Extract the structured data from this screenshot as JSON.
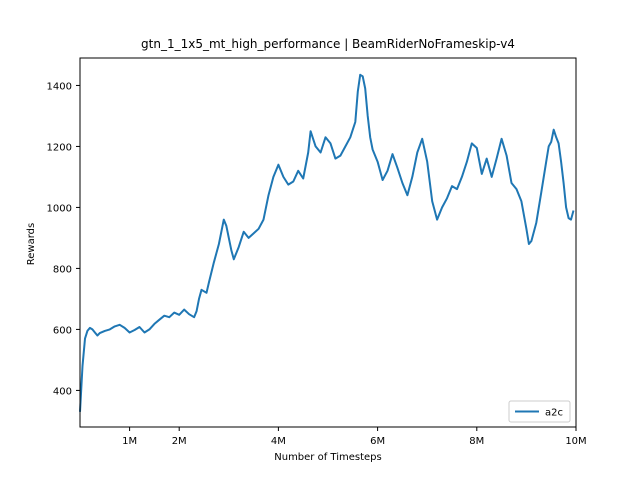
{
  "chart_data": {
    "type": "line",
    "title": "gtn_1_1x5_mt_high_performance | BeamRiderNoFrameskip-v4",
    "xlabel": "Number of Timesteps",
    "ylabel": "Rewards",
    "xlim": [
      0,
      10000000
    ],
    "ylim": [
      280,
      1490
    ],
    "xticks": [
      {
        "value": 1000000,
        "label": "1M"
      },
      {
        "value": 2000000,
        "label": "2M"
      },
      {
        "value": 4000000,
        "label": "4M"
      },
      {
        "value": 6000000,
        "label": "6M"
      },
      {
        "value": 8000000,
        "label": "8M"
      },
      {
        "value": 10000000,
        "label": "10M"
      }
    ],
    "yticks": [
      {
        "value": 400,
        "label": "400"
      },
      {
        "value": 600,
        "label": "600"
      },
      {
        "value": 800,
        "label": "800"
      },
      {
        "value": 1000,
        "label": "1000"
      },
      {
        "value": 1200,
        "label": "1200"
      },
      {
        "value": 1400,
        "label": "1400"
      }
    ],
    "legend_position": "bottom-right",
    "grid": false,
    "series": [
      {
        "name": "a2c",
        "color": "#1f77b4",
        "points": [
          [
            0,
            330
          ],
          [
            50000,
            480
          ],
          [
            100000,
            570
          ],
          [
            150000,
            595
          ],
          [
            200000,
            605
          ],
          [
            250000,
            600
          ],
          [
            300000,
            590
          ],
          [
            350000,
            580
          ],
          [
            400000,
            588
          ],
          [
            500000,
            595
          ],
          [
            600000,
            600
          ],
          [
            700000,
            610
          ],
          [
            800000,
            615
          ],
          [
            900000,
            605
          ],
          [
            1000000,
            590
          ],
          [
            1100000,
            598
          ],
          [
            1200000,
            608
          ],
          [
            1300000,
            590
          ],
          [
            1400000,
            600
          ],
          [
            1500000,
            618
          ],
          [
            1600000,
            632
          ],
          [
            1700000,
            645
          ],
          [
            1800000,
            640
          ],
          [
            1900000,
            655
          ],
          [
            2000000,
            648
          ],
          [
            2100000,
            665
          ],
          [
            2200000,
            650
          ],
          [
            2300000,
            640
          ],
          [
            2350000,
            660
          ],
          [
            2400000,
            700
          ],
          [
            2450000,
            730
          ],
          [
            2550000,
            720
          ],
          [
            2600000,
            755
          ],
          [
            2700000,
            820
          ],
          [
            2800000,
            880
          ],
          [
            2900000,
            960
          ],
          [
            2950000,
            940
          ],
          [
            3000000,
            900
          ],
          [
            3050000,
            860
          ],
          [
            3100000,
            830
          ],
          [
            3200000,
            870
          ],
          [
            3300000,
            920
          ],
          [
            3400000,
            900
          ],
          [
            3500000,
            915
          ],
          [
            3600000,
            930
          ],
          [
            3700000,
            960
          ],
          [
            3800000,
            1040
          ],
          [
            3900000,
            1100
          ],
          [
            4000000,
            1140
          ],
          [
            4100000,
            1100
          ],
          [
            4200000,
            1075
          ],
          [
            4300000,
            1085
          ],
          [
            4400000,
            1120
          ],
          [
            4500000,
            1095
          ],
          [
            4600000,
            1180
          ],
          [
            4650000,
            1250
          ],
          [
            4750000,
            1200
          ],
          [
            4850000,
            1180
          ],
          [
            4950000,
            1230
          ],
          [
            5050000,
            1210
          ],
          [
            5150000,
            1160
          ],
          [
            5250000,
            1170
          ],
          [
            5350000,
            1200
          ],
          [
            5450000,
            1230
          ],
          [
            5550000,
            1280
          ],
          [
            5600000,
            1380
          ],
          [
            5650000,
            1435
          ],
          [
            5700000,
            1430
          ],
          [
            5750000,
            1390
          ],
          [
            5800000,
            1300
          ],
          [
            5850000,
            1230
          ],
          [
            5900000,
            1190
          ],
          [
            6000000,
            1150
          ],
          [
            6100000,
            1090
          ],
          [
            6200000,
            1120
          ],
          [
            6300000,
            1175
          ],
          [
            6400000,
            1130
          ],
          [
            6500000,
            1080
          ],
          [
            6600000,
            1040
          ],
          [
            6700000,
            1100
          ],
          [
            6800000,
            1180
          ],
          [
            6900000,
            1225
          ],
          [
            7000000,
            1150
          ],
          [
            7100000,
            1020
          ],
          [
            7200000,
            960
          ],
          [
            7300000,
            1000
          ],
          [
            7400000,
            1030
          ],
          [
            7500000,
            1070
          ],
          [
            7600000,
            1060
          ],
          [
            7700000,
            1100
          ],
          [
            7800000,
            1150
          ],
          [
            7900000,
            1210
          ],
          [
            8000000,
            1195
          ],
          [
            8100000,
            1110
          ],
          [
            8200000,
            1160
          ],
          [
            8300000,
            1100
          ],
          [
            8400000,
            1160
          ],
          [
            8500000,
            1225
          ],
          [
            8600000,
            1170
          ],
          [
            8700000,
            1080
          ],
          [
            8800000,
            1060
          ],
          [
            8900000,
            1020
          ],
          [
            9000000,
            930
          ],
          [
            9050000,
            880
          ],
          [
            9100000,
            890
          ],
          [
            9200000,
            950
          ],
          [
            9300000,
            1050
          ],
          [
            9400000,
            1150
          ],
          [
            9450000,
            1200
          ],
          [
            9500000,
            1215
          ],
          [
            9550000,
            1255
          ],
          [
            9600000,
            1230
          ],
          [
            9650000,
            1210
          ],
          [
            9700000,
            1150
          ],
          [
            9750000,
            1080
          ],
          [
            9800000,
            1000
          ],
          [
            9850000,
            965
          ],
          [
            9900000,
            960
          ],
          [
            9950000,
            990
          ]
        ]
      }
    ]
  }
}
